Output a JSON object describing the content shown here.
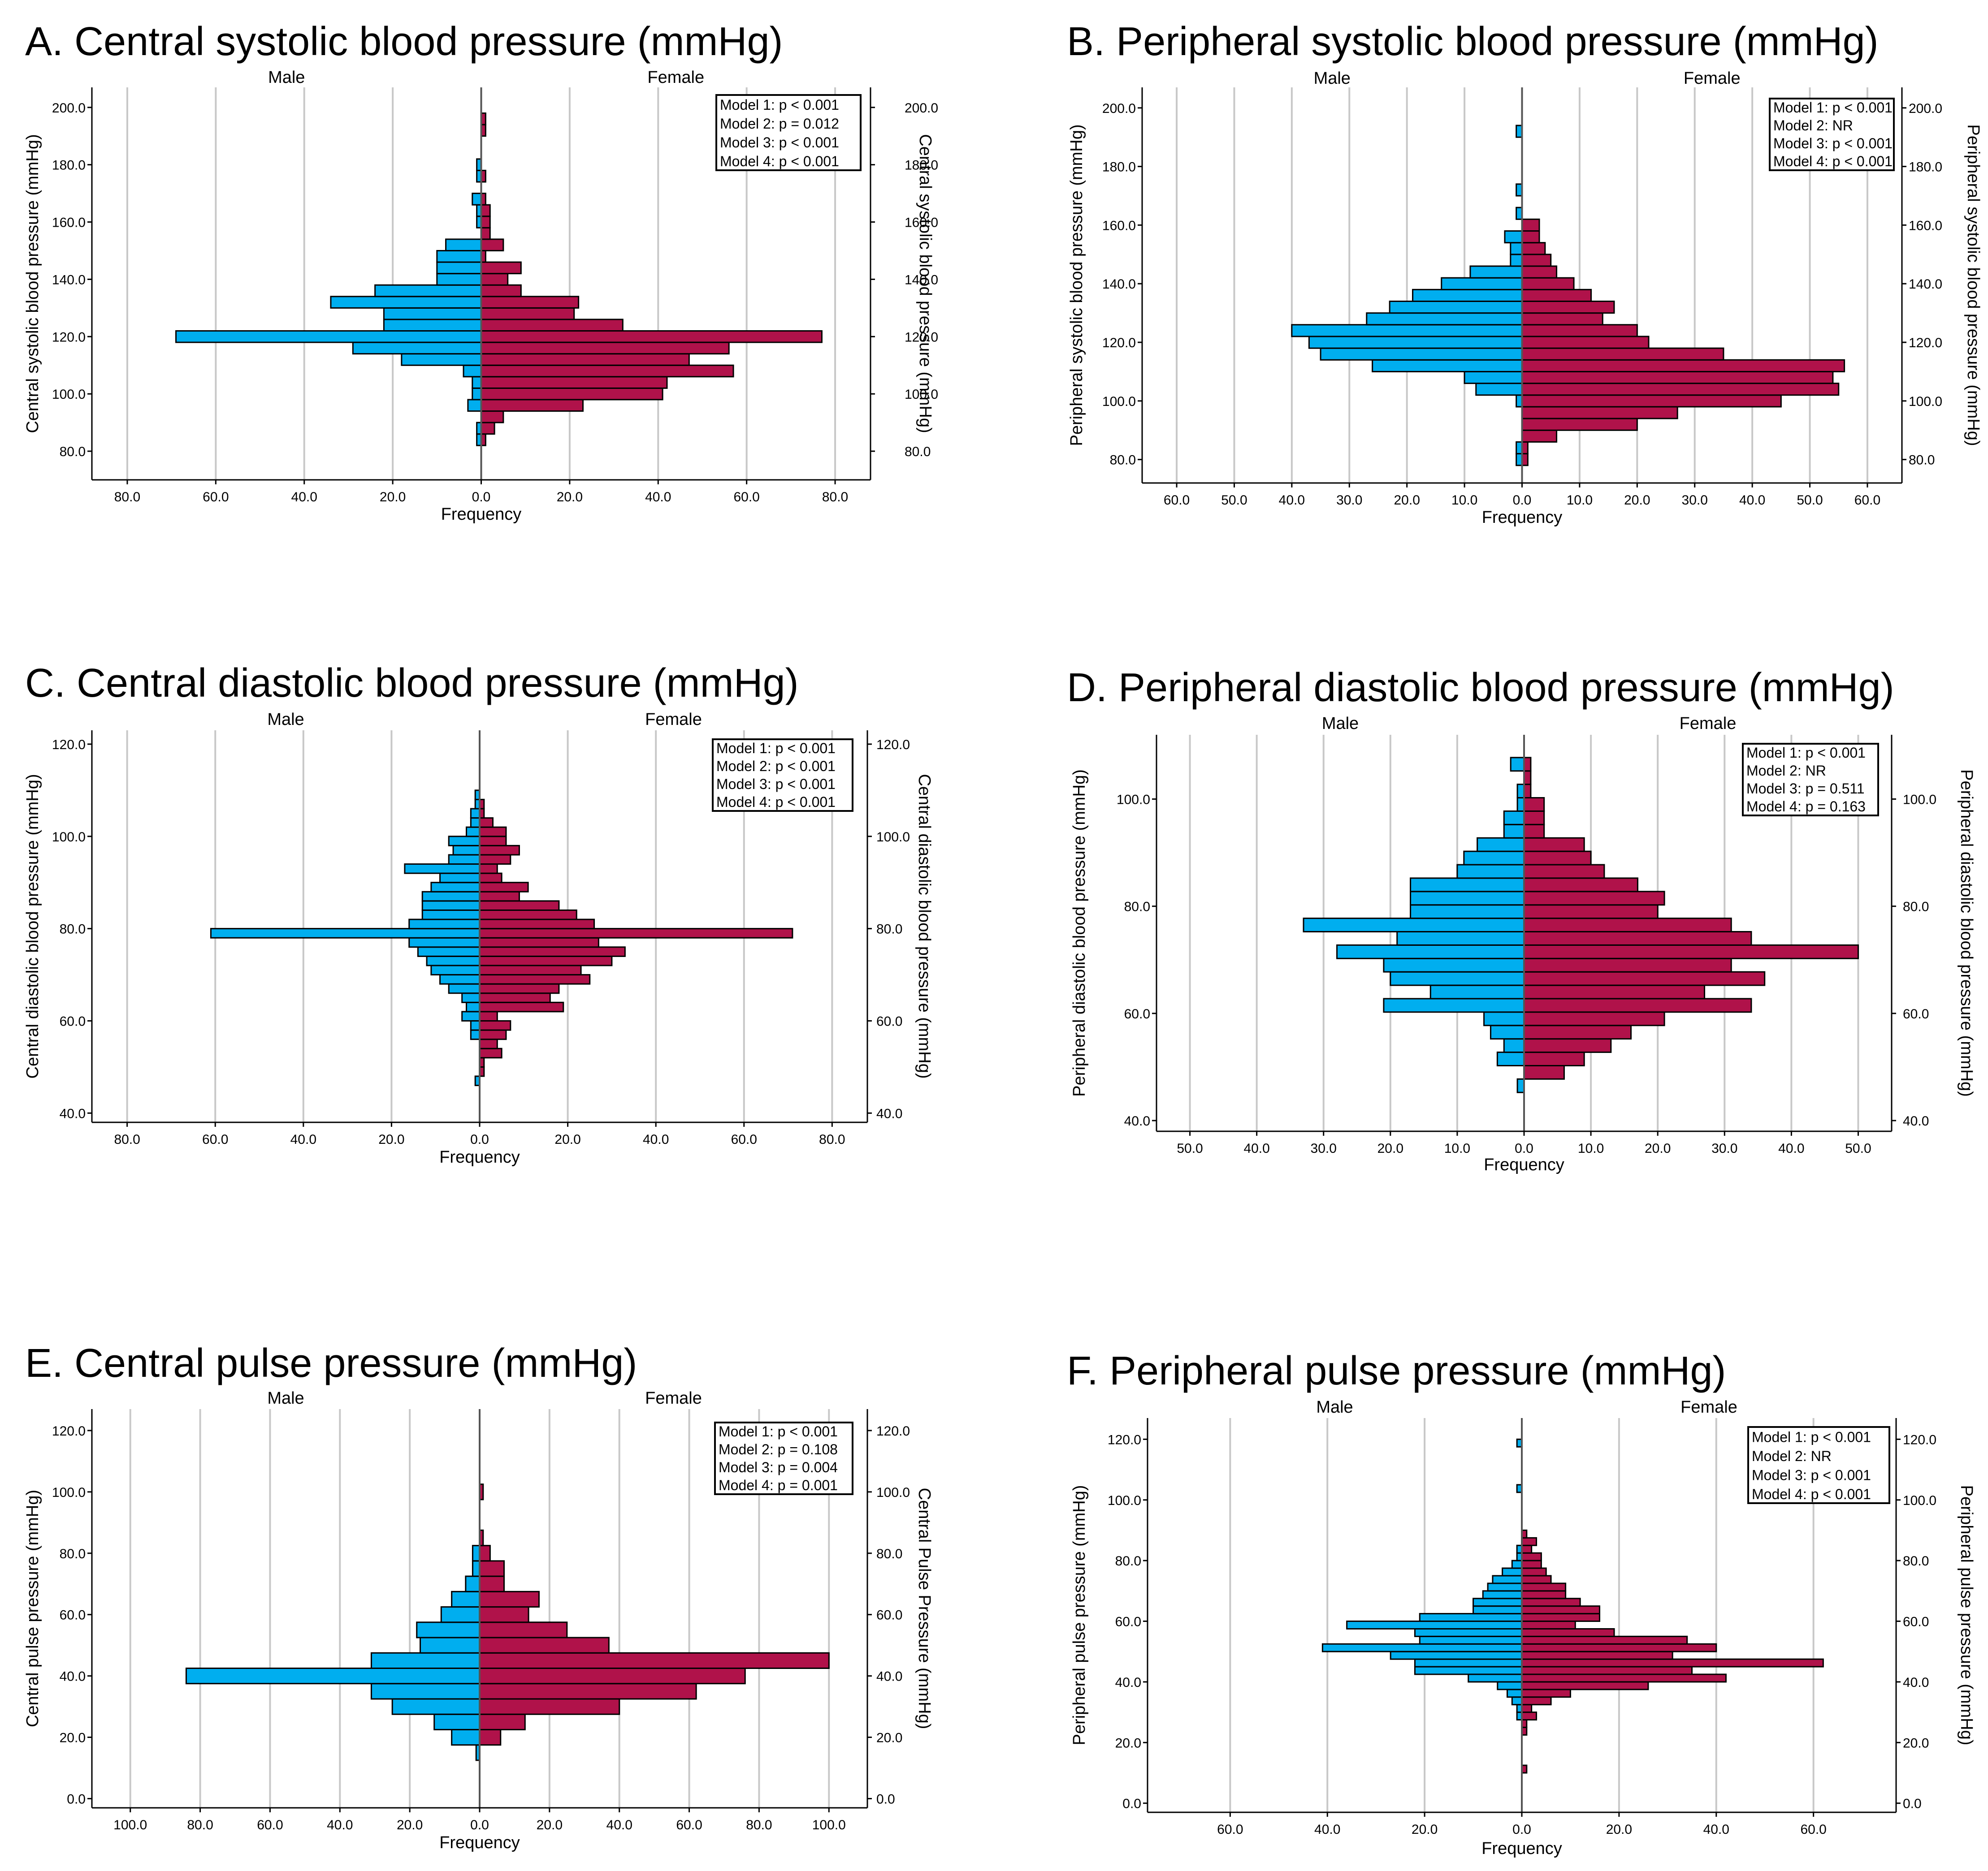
{
  "colors": {
    "male": "#00AEEF",
    "female": "#B0124A",
    "grid": "#c8c8c8",
    "axis": "#000000"
  },
  "chart_data": [
    {
      "id": "A",
      "type": "bar",
      "title": "A. Central systolic blood pressure (mmHg)",
      "male_label": "Male",
      "female_label": "Female",
      "xlabel": "Frequency",
      "ylabel_left": "Central systolic blood pressure (mmHg)",
      "ylabel_right": "Central systolic blood pressure (mmHg)",
      "freq_ticks": [
        80,
        60,
        40,
        20,
        0,
        20,
        40,
        60,
        80
      ],
      "freq_tick_labels": [
        "80.0",
        "60.0",
        "40.0",
        "20.0",
        "0.0",
        "20.0",
        "40.0",
        "60.0",
        "80.0"
      ],
      "freq_max": 88,
      "grid_values": [
        80,
        60,
        40,
        20,
        20,
        40,
        60,
        80
      ],
      "ylim": [
        70,
        207
      ],
      "y_ticks": [
        80,
        100,
        120,
        140,
        160,
        180,
        200
      ],
      "y_tick_labels": [
        "80.0",
        "100.0",
        "120.0",
        "140.0",
        "160.0",
        "180.0",
        "200.0"
      ],
      "bin_width": 4,
      "bins": [
        84,
        88,
        92,
        96,
        100,
        104,
        108,
        112,
        116,
        120,
        124,
        128,
        132,
        136,
        140,
        144,
        148,
        152,
        156,
        160,
        164,
        168,
        172,
        176,
        180,
        184,
        188,
        192,
        196,
        200
      ],
      "male": [
        1,
        1,
        0,
        3,
        2,
        2,
        4,
        18,
        29,
        69,
        22,
        22,
        34,
        24,
        10,
        10,
        10,
        8,
        0,
        1,
        1,
        2,
        0,
        1,
        1,
        0,
        0,
        0,
        0,
        0
      ],
      "female": [
        1,
        3,
        5,
        23,
        41,
        42,
        57,
        47,
        56,
        77,
        32,
        21,
        22,
        9,
        6,
        9,
        1,
        5,
        2,
        2,
        2,
        1,
        0,
        1,
        0,
        0,
        0,
        1,
        1,
        0
      ],
      "model_lines": [
        "Model 1: p < 0.001",
        "Model 2: p = 0.012",
        "Model 3: p < 0.001",
        "Model 4: p < 0.001"
      ]
    },
    {
      "id": "B",
      "type": "bar",
      "title": "B. Peripheral systolic blood pressure (mmHg)",
      "male_label": "Male",
      "female_label": "Female",
      "xlabel": "Frequency",
      "ylabel_left": "Peripheral systolic blood pressure (mmHg)",
      "ylabel_right": "Peripheral systolic blood pressure (mmHg)",
      "freq_ticks": [
        60,
        50,
        40,
        30,
        20,
        10,
        0,
        10,
        20,
        30,
        40,
        50,
        60
      ],
      "freq_tick_labels": [
        "60.0",
        "50.0",
        "40.0",
        "30.0",
        "20.0",
        "10.0",
        "0.0",
        "10.0",
        "20.0",
        "30.0",
        "40.0",
        "50.0",
        "60.0"
      ],
      "freq_max": 66,
      "grid_values": [
        60,
        50,
        40,
        30,
        20,
        10,
        10,
        20,
        30,
        40,
        50,
        60
      ],
      "ylim": [
        72,
        207
      ],
      "y_ticks": [
        80,
        100,
        120,
        140,
        160,
        180,
        200
      ],
      "y_tick_labels": [
        "80.0",
        "100.0",
        "120.0",
        "140.0",
        "160.0",
        "180.0",
        "200.0"
      ],
      "bin_width": 4,
      "bins": [
        80,
        84,
        88,
        92,
        96,
        100,
        104,
        108,
        112,
        116,
        120,
        124,
        128,
        132,
        136,
        140,
        144,
        148,
        152,
        156,
        160,
        164,
        168,
        172,
        176,
        180,
        184,
        188,
        192,
        196
      ],
      "male": [
        1,
        1,
        0,
        0,
        0,
        1,
        8,
        10,
        26,
        35,
        37,
        40,
        27,
        23,
        19,
        14,
        9,
        2,
        2,
        3,
        0,
        1,
        0,
        1,
        0,
        0,
        0,
        0,
        1,
        0
      ],
      "female": [
        1,
        1,
        6,
        20,
        27,
        45,
        55,
        54,
        56,
        35,
        22,
        20,
        14,
        16,
        12,
        9,
        6,
        5,
        4,
        3,
        3,
        0,
        0,
        0,
        0,
        0,
        0,
        0,
        0,
        0
      ],
      "model_lines": [
        "Model 1: p < 0.001",
        "Model 2: NR",
        "Model 3: p < 0.001",
        "Model 4: p < 0.001"
      ]
    },
    {
      "id": "C",
      "type": "bar",
      "title": "C. Central diastolic blood pressure (mmHg)",
      "male_label": "Male",
      "female_label": "Female",
      "xlabel": "Frequency",
      "ylabel_left": "Central diastolic blood pressure (mmHg)",
      "ylabel_right": "Central diastolic blood pressure (mmHg)",
      "freq_ticks": [
        80,
        60,
        40,
        20,
        0,
        20,
        40,
        60,
        80
      ],
      "freq_tick_labels": [
        "80.0",
        "60.0",
        "40.0",
        "20.0",
        "0.0",
        "20.0",
        "40.0",
        "60.0",
        "80.0"
      ],
      "freq_max": 88,
      "grid_values": [
        80,
        60,
        40,
        20,
        20,
        40,
        60,
        80
      ],
      "ylim": [
        38,
        123
      ],
      "y_ticks": [
        40,
        60,
        80,
        100,
        120
      ],
      "y_tick_labels": [
        "40.0",
        "60.0",
        "80.0",
        "100.0",
        "120.0"
      ],
      "bin_width": 2,
      "bins": [
        47,
        49,
        51,
        53,
        55,
        57,
        59,
        61,
        63,
        65,
        67,
        69,
        71,
        73,
        75,
        77,
        79,
        81,
        83,
        85,
        87,
        89,
        91,
        93,
        95,
        97,
        99,
        101,
        103,
        105,
        107,
        109
      ],
      "male": [
        1,
        0,
        0,
        0,
        0,
        2,
        2,
        4,
        3,
        4,
        7,
        9,
        11,
        12,
        14,
        16,
        61,
        16,
        13,
        13,
        13,
        11,
        9,
        17,
        7,
        6,
        7,
        3,
        2,
        2,
        1,
        1
      ],
      "female": [
        0,
        1,
        1,
        5,
        4,
        6,
        7,
        4,
        19,
        16,
        18,
        25,
        23,
        30,
        33,
        27,
        71,
        26,
        22,
        18,
        9,
        11,
        5,
        4,
        7,
        9,
        6,
        6,
        3,
        1,
        1,
        0
      ],
      "model_lines": [
        "Model 1: p < 0.001",
        "Model 2: p < 0.001",
        "Model 3: p < 0.001",
        "Model 4: p < 0.001"
      ]
    },
    {
      "id": "D",
      "type": "bar",
      "title": "D. Peripheral diastolic blood pressure (mmHg)",
      "male_label": "Male",
      "female_label": "Female",
      "xlabel": "Frequency",
      "ylabel_left": "Peripheral diastolic blood pressure (mmHg)",
      "ylabel_right": "Peripheral diastolic blood pressure (mmHg)",
      "freq_ticks": [
        50,
        40,
        30,
        20,
        10,
        0,
        10,
        20,
        30,
        40,
        50
      ],
      "freq_tick_labels": [
        "50.0",
        "40.0",
        "30.0",
        "20.0",
        "10.0",
        "0.0",
        "10.0",
        "20.0",
        "30.0",
        "40.0",
        "50.0"
      ],
      "freq_max": 55,
      "grid_values": [
        50,
        40,
        30,
        20,
        10,
        10,
        20,
        30,
        40,
        50
      ],
      "ylim": [
        38,
        112
      ],
      "y_ticks": [
        40,
        60,
        80,
        100
      ],
      "y_tick_labels": [
        "40.0",
        "60.0",
        "80.0",
        "100.0"
      ],
      "bin_width": 2.5,
      "bins": [
        46.5,
        49,
        51.5,
        54,
        56.5,
        59,
        61.5,
        64,
        66.5,
        69,
        71.5,
        74,
        76.5,
        79,
        81.5,
        84,
        86.5,
        89,
        91.5,
        94,
        96.5,
        99,
        101.5,
        104,
        106.5
      ],
      "male": [
        1,
        0,
        4,
        3,
        5,
        6,
        21,
        14,
        20,
        21,
        28,
        19,
        33,
        17,
        17,
        17,
        10,
        9,
        7,
        3,
        3,
        1,
        1,
        0,
        2
      ],
      "female": [
        0,
        6,
        9,
        13,
        16,
        21,
        34,
        27,
        36,
        31,
        50,
        34,
        31,
        20,
        21,
        17,
        12,
        10,
        9,
        3,
        3,
        3,
        1,
        1,
        1
      ],
      "model_lines": [
        "Model 1: p < 0.001",
        "Model 2: NR",
        "Model 3: p = 0.511",
        "Model 4: p = 0.163"
      ]
    },
    {
      "id": "E",
      "type": "bar",
      "title": "E. Central pulse pressure (mmHg)",
      "male_label": "Male",
      "female_label": "Female",
      "xlabel": "Frequency",
      "ylabel_left": "Central pulse pressure (mmHg)",
      "ylabel_right": "Central Pulse Pressure (mmHg)",
      "freq_ticks": [
        100,
        80,
        60,
        40,
        20,
        0,
        20,
        40,
        60,
        80,
        100
      ],
      "freq_tick_labels": [
        "100.0",
        "80.0",
        "60.0",
        "40.0",
        "20.0",
        "0.0",
        "20.0",
        "40.0",
        "60.0",
        "80.0",
        "100.0"
      ],
      "freq_max": 111,
      "grid_values": [
        100,
        80,
        60,
        40,
        20,
        20,
        40,
        60,
        80,
        100
      ],
      "ylim": [
        -3,
        127
      ],
      "y_ticks": [
        0,
        20,
        40,
        60,
        80,
        100,
        120
      ],
      "y_tick_labels": [
        "0.0",
        "20.0",
        "40.0",
        "60.0",
        "80.0",
        "100.0",
        "120.0"
      ],
      "bin_width": 5,
      "bins": [
        15,
        20,
        25,
        30,
        35,
        40,
        45,
        50,
        55,
        60,
        65,
        70,
        75,
        80,
        85,
        90,
        95,
        100,
        105
      ],
      "male": [
        1,
        8,
        13,
        25,
        31,
        84,
        31,
        17,
        18,
        11,
        8,
        4,
        2,
        2,
        0,
        0,
        0,
        0,
        0
      ],
      "female": [
        0,
        6,
        13,
        40,
        62,
        76,
        100,
        37,
        25,
        14,
        17,
        7,
        7,
        3,
        1,
        0,
        0,
        1,
        0
      ],
      "model_lines": [
        "Model 1: p < 0.001",
        "Model 2: p = 0.108",
        "Model 3: p = 0.004",
        "Model 4: p = 0.001"
      ]
    },
    {
      "id": "F",
      "type": "bar",
      "title": "F. Peripheral pulse pressure (mmHg)",
      "male_label": "Male",
      "female_label": "Female",
      "xlabel": "Frequency",
      "ylabel_left": "Peripheral pulse pressure (mmHg)",
      "ylabel_right": "Peripheral pulse pressure (mmHg)",
      "freq_ticks": [
        60,
        40,
        20,
        0,
        20,
        40,
        60
      ],
      "freq_tick_labels": [
        "60.0",
        "40.0",
        "20.0",
        "0.0",
        "20.0",
        "40.0",
        "60.0"
      ],
      "freq_max": 77,
      "grid_values": [
        60,
        40,
        20,
        20,
        40,
        60
      ],
      "ylim": [
        -3,
        127
      ],
      "y_ticks": [
        0,
        20,
        40,
        60,
        80,
        100,
        120
      ],
      "y_tick_labels": [
        "0.0",
        "20.0",
        "40.0",
        "60.0",
        "80.0",
        "100.0",
        "120.0"
      ],
      "bin_width": 2.5,
      "bins": [
        11.25,
        13.75,
        16.25,
        18.75,
        21.25,
        23.75,
        26.25,
        28.75,
        31.25,
        33.75,
        36.25,
        38.75,
        41.25,
        43.75,
        46.25,
        48.75,
        51.25,
        53.75,
        56.25,
        58.75,
        61.25,
        63.75,
        66.25,
        68.75,
        71.25,
        73.75,
        76.25,
        78.75,
        81.25,
        83.75,
        86.25,
        88.75,
        91.25,
        93.75,
        96.25,
        98.75,
        101.25,
        103.75,
        106.25,
        108.75,
        111.25,
        113.75,
        116.25,
        118.75
      ],
      "male": [
        0,
        0,
        0,
        0,
        0,
        0,
        0,
        1,
        1,
        2,
        3,
        5,
        11,
        22,
        22,
        27,
        41,
        21,
        22,
        36,
        21,
        10,
        10,
        8,
        7,
        6,
        4,
        2,
        1,
        1,
        0,
        0,
        0,
        0,
        0,
        0,
        0,
        1,
        0,
        0,
        0,
        0,
        0,
        1
      ],
      "female": [
        1,
        0,
        0,
        0,
        0,
        1,
        1,
        3,
        2,
        6,
        10,
        26,
        42,
        35,
        62,
        31,
        40,
        34,
        19,
        11,
        16,
        16,
        12,
        9,
        9,
        6,
        5,
        4,
        4,
        2,
        3,
        1,
        0,
        0,
        0,
        0,
        0,
        0,
        0,
        0,
        0,
        0,
        0,
        0
      ],
      "model_lines": [
        "Model 1: p < 0.001",
        "Model 2: NR",
        "Model 3: p < 0.001",
        "Model 4: p < 0.001"
      ]
    }
  ]
}
